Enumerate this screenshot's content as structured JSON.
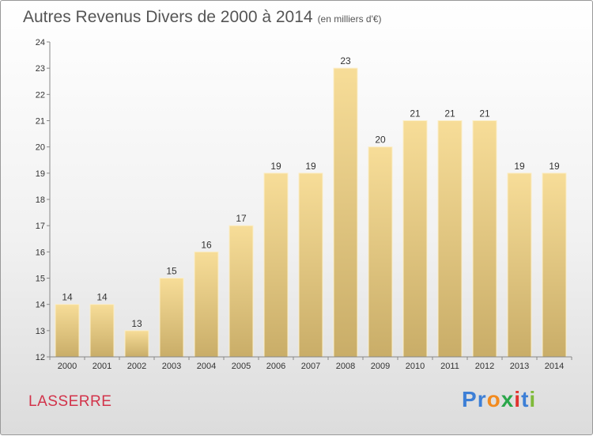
{
  "title": "Autres Revenus Divers de 2000 à 2014",
  "subtitle": "(en milliers d'€)",
  "town": "LASSERRE",
  "logo": {
    "letters": [
      "P",
      "r",
      "o",
      "x",
      "i",
      "t",
      "i"
    ],
    "colors": [
      "#3d7fd6",
      "#3d7fd6",
      "#f28a1e",
      "#2aa64a",
      "#e0332f",
      "#3d7fd6",
      "#7fba3a"
    ]
  },
  "chart_data": {
    "type": "bar",
    "categories": [
      "2000",
      "2001",
      "2002",
      "2003",
      "2004",
      "2005",
      "2006",
      "2007",
      "2008",
      "2009",
      "2010",
      "2011",
      "2012",
      "2013",
      "2014"
    ],
    "values": [
      14,
      14,
      13,
      15,
      16,
      17,
      19,
      19,
      23,
      20,
      21,
      21,
      21,
      19,
      19
    ],
    "ylim": [
      12,
      24
    ],
    "yticks": [
      12,
      13,
      14,
      15,
      16,
      17,
      18,
      19,
      20,
      21,
      22,
      23,
      24
    ],
    "grid": false,
    "bar_color_top": "#f7dd98",
    "bar_color_bottom": "#c9ad68"
  }
}
